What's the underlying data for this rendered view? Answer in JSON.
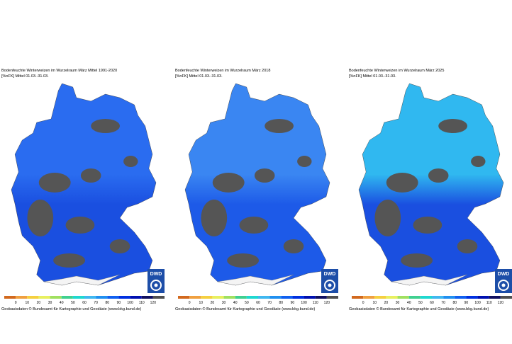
{
  "panels": [
    {
      "title": "Bodenfeuchte Winterweizen im Wurzelraum März Mittel 1991-2020",
      "subtitle": "[%nFK] Mittel 01.03.-31.03.",
      "logo": "DWD",
      "legend_ticks": [
        0,
        10,
        20,
        30,
        40,
        50,
        60,
        70,
        80,
        90,
        100,
        110,
        120
      ],
      "attribution": "Geobasisdaten © Bundesamt für Kartographie und Geodäsie (www.bkg.bund.de)"
    },
    {
      "title": "Bodenfeuchte Winterweizen im Wurzelraum März 2018",
      "subtitle": "[%nFK] Mittel 01.03.-31.03.",
      "logo": "DWD",
      "legend_ticks": [
        0,
        10,
        20,
        30,
        40,
        50,
        60,
        70,
        80,
        90,
        100,
        110,
        120
      ],
      "attribution": "Geobasisdaten © Bundesamt für Kartographie und Geodäsie (www.bkg.bund.de)"
    },
    {
      "title": "Bodenfeuchte Winterweizen im Wurzelraum März 2025",
      "subtitle": "[%nFK] Mittel 01.03.-31.03.",
      "logo": "DWD",
      "legend_ticks": [
        0,
        10,
        20,
        30,
        40,
        50,
        60,
        70,
        80,
        90,
        100,
        110,
        120
      ],
      "attribution": "Geobasisdaten © Bundesamt für Kartographie und Geodäsie (www.bkg.bund.de)"
    }
  ],
  "legend_colors": [
    "#d2691e",
    "#f0a040",
    "#f5d040",
    "#e8f060",
    "#a0e060",
    "#40d090",
    "#20d8d0",
    "#40b8f0",
    "#2090f0",
    "#1060f0",
    "#0030e0",
    "#0010b0",
    "#101060",
    "#505050"
  ]
}
